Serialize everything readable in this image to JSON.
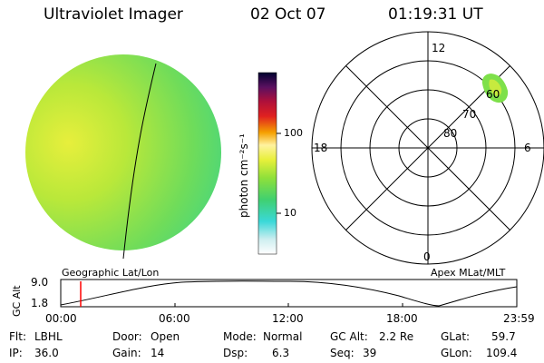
{
  "header": {
    "instrument": "Ultraviolet Imager",
    "date": "02 Oct 07",
    "time": "01:19:31 UT"
  },
  "colorbar": {
    "unit_label": "photon cm⁻²s⁻¹",
    "tick_labels": [
      "100",
      "10"
    ]
  },
  "polar": {
    "top_label": "12",
    "bottom_label": "0",
    "left_label": "18",
    "right_label": "6",
    "ring_labels": [
      "60",
      "70",
      "80"
    ]
  },
  "panel_labels": {
    "left": "Geographic Lat/Lon",
    "right": "Apex MLat/MLT"
  },
  "orbit_plot": {
    "y_axis_label": "GC Alt",
    "y_ticks": [
      "9.0",
      "1.8"
    ],
    "x_ticks": [
      "00:00",
      "06:00",
      "12:00",
      "18:00",
      "23:59"
    ]
  },
  "info": {
    "row1": [
      {
        "label": "Flt:",
        "value": "LBHL"
      },
      {
        "label": "Door:",
        "value": "Open"
      },
      {
        "label": "Mode:",
        "value": "Normal"
      },
      {
        "label": "GC Alt:",
        "value": "2.2 Re"
      },
      {
        "label": "GLat:",
        "value": "59.7"
      }
    ],
    "row2": [
      {
        "label": "IP:",
        "value": "36.0"
      },
      {
        "label": "Gain:",
        "value": "14"
      },
      {
        "label": "Dsp:",
        "value": "6.3"
      },
      {
        "label": "Seq:",
        "value": "39"
      },
      {
        "label": "GLon:",
        "value": "109.4"
      }
    ]
  },
  "colors": {
    "disk_fill": "#9be23a",
    "disk_edge": "#d9f23a",
    "aurora": "#7ee04a",
    "marker": "#ff0000"
  }
}
